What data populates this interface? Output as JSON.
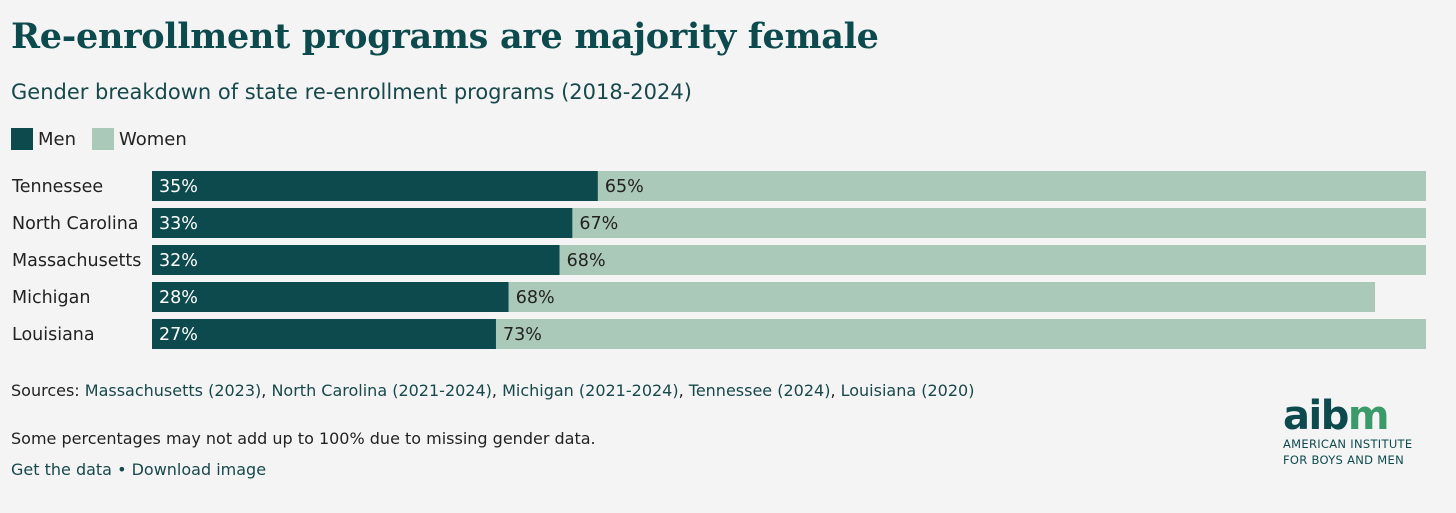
{
  "header": {
    "title": "Re-enrollment programs are majority female",
    "subtitle": "Gender breakdown of state re-enrollment programs (2018-2024)"
  },
  "legend": [
    {
      "label": "Men",
      "color": "#0d4a4e"
    },
    {
      "label": "Women",
      "color": "#abc9b8"
    }
  ],
  "chart_data": {
    "type": "bar",
    "orientation": "horizontal",
    "stacked": true,
    "categories": [
      "Tennessee",
      "North Carolina",
      "Massachusetts",
      "Michigan",
      "Louisiana"
    ],
    "series": [
      {
        "name": "Men",
        "values": [
          35,
          33,
          32,
          28,
          27
        ],
        "labels": [
          "35%",
          "33%",
          "32%",
          "28%",
          "27%"
        ],
        "color": "#0d4a4e"
      },
      {
        "name": "Women",
        "values": [
          65,
          67,
          68,
          68,
          73
        ],
        "labels": [
          "65%",
          "67%",
          "68%",
          "68%",
          "73%"
        ],
        "color": "#abc9b8"
      }
    ],
    "xlim": [
      0,
      100
    ],
    "grid": false,
    "legend_position": "top-left"
  },
  "footer": {
    "sources_prefix": "Sources: ",
    "sources": [
      "Massachusetts (2023)",
      "North Carolina (2021-2024)",
      "Michigan (2021-2024)",
      "Tennessee (2024)",
      "Louisiana (2020)"
    ],
    "sources_sep": ", ",
    "note": "Some percentages may not add up to 100% due to missing gender data.",
    "get_data": "Get the data",
    "bullet": " • ",
    "download": "Download image"
  },
  "logo": {
    "wordmark_a": "aib",
    "wordmark_m": "m",
    "line1": "AMERICAN INSTITUTE",
    "line2": "FOR BOYS AND MEN"
  }
}
